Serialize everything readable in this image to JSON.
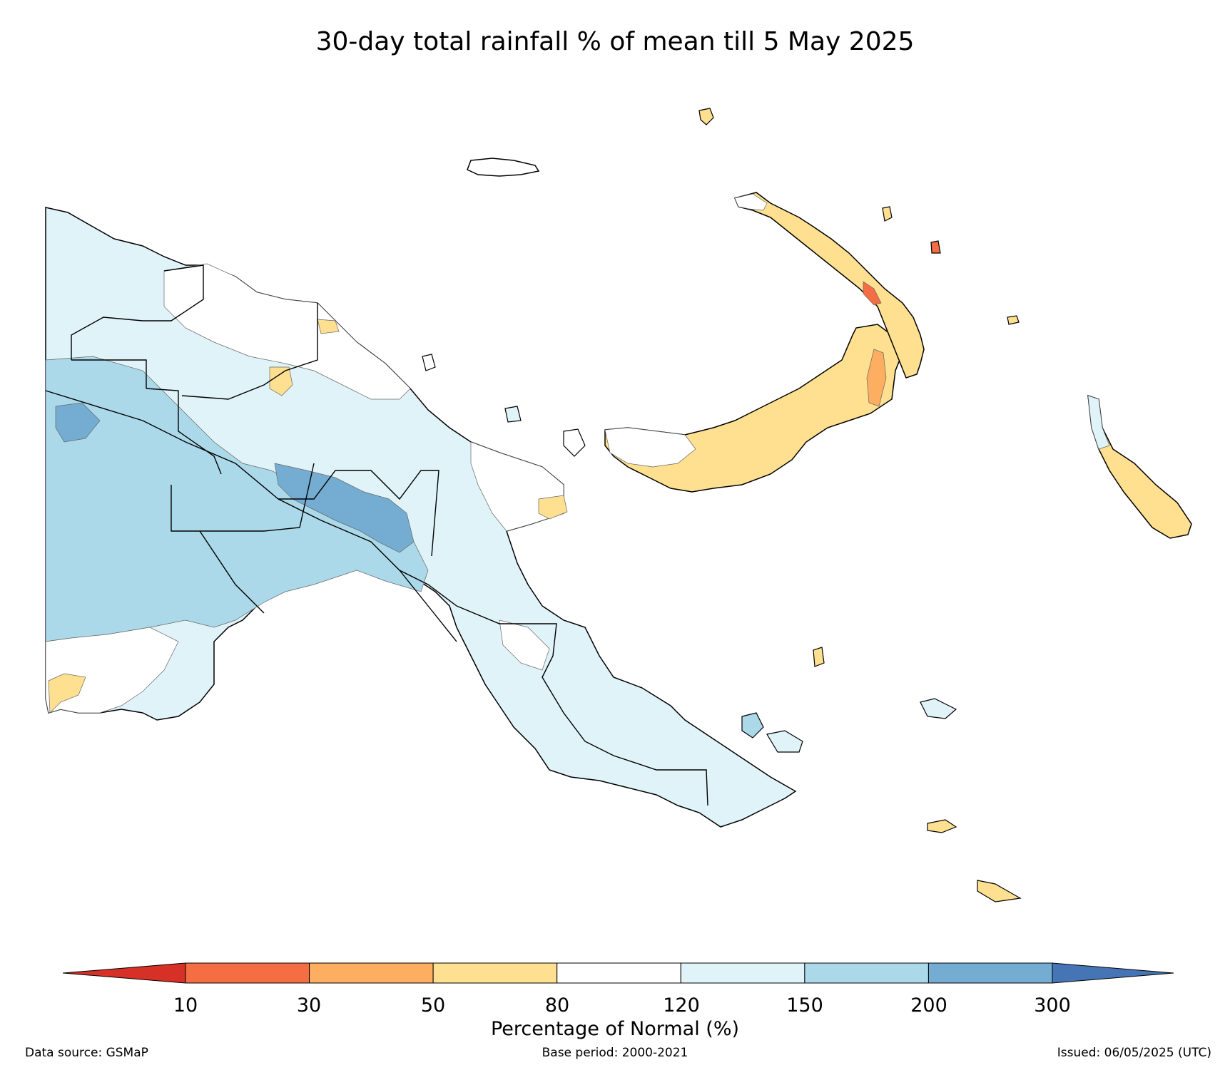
{
  "title": "30-day total rainfall % of mean till 5 May 2025",
  "legend": {
    "label": "Percentage of Normal (%)",
    "ticks": [
      "10",
      "30",
      "50",
      "80",
      "120",
      "150",
      "200",
      "300"
    ],
    "bins": [
      {
        "range": "<10",
        "color": "#d73027"
      },
      {
        "range": "10-30",
        "color": "#f46d43"
      },
      {
        "range": "30-50",
        "color": "#fdae61"
      },
      {
        "range": "50-80",
        "color": "#fee090"
      },
      {
        "range": "80-120",
        "color": "#ffffff"
      },
      {
        "range": "120-150",
        "color": "#e0f3f8"
      },
      {
        "range": "150-200",
        "color": "#abd9e9"
      },
      {
        "range": "200-300",
        "color": "#74add1"
      },
      {
        "range": ">300",
        "color": "#4575b4"
      }
    ]
  },
  "footer": {
    "source": "Data source: GSMaP",
    "base_period": "Base period: 2000-2021",
    "issued": "Issued: 06/05/2025 (UTC)"
  }
}
